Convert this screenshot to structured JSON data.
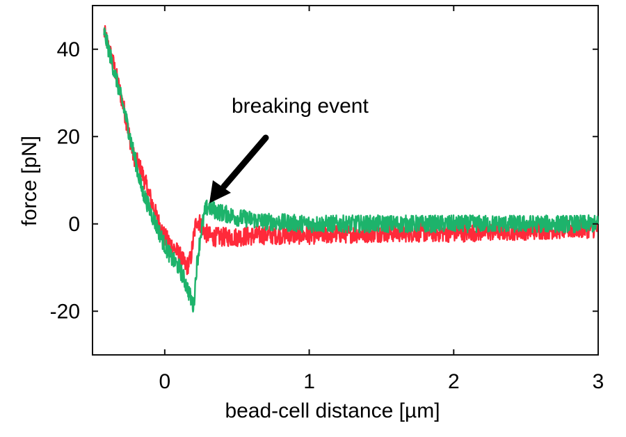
{
  "chart_data": {
    "type": "line",
    "xlabel": "bead-cell distance [µm]",
    "ylabel": "force [pN]",
    "xlim": [
      -0.5,
      3.0
    ],
    "ylim": [
      -30,
      50
    ],
    "x_ticks": [
      0,
      1,
      2,
      3
    ],
    "y_ticks": [
      -20,
      0,
      20,
      40
    ],
    "x_tick_labels": [
      "0",
      "1",
      "2",
      "3"
    ],
    "y_tick_labels": [
      "-20",
      "0",
      "20",
      "40"
    ],
    "grid": false,
    "legend": "none",
    "annotation": {
      "text": "breaking event",
      "arrow_target": [
        0.32,
        5
      ]
    },
    "series": [
      {
        "color": "#ff2a3a",
        "noise": 2.2,
        "x": [
          -0.42,
          -0.35,
          -0.28,
          -0.22,
          -0.16,
          -0.1,
          -0.05,
          0.0,
          0.05,
          0.1,
          0.15,
          0.18,
          0.2,
          0.22,
          0.25,
          0.28,
          0.32,
          0.4,
          0.5,
          0.7,
          1.0,
          1.5,
          2.0,
          2.5,
          3.0
        ],
        "y": [
          44,
          36,
          26,
          16,
          12,
          6,
          1,
          -3,
          -5,
          -7,
          -10,
          -8,
          -3,
          1,
          0,
          -2,
          -3,
          -3,
          -3,
          -2.5,
          -2.5,
          -2,
          -2,
          -1.5,
          -1
        ]
      },
      {
        "color": "#1db36b",
        "noise": 2.0,
        "x": [
          -0.42,
          -0.35,
          -0.28,
          -0.22,
          -0.16,
          -0.1,
          -0.05,
          0.0,
          0.05,
          0.1,
          0.15,
          0.2,
          0.22,
          0.25,
          0.28,
          0.3,
          0.35,
          0.4,
          0.5,
          0.7,
          1.0,
          1.5,
          2.0,
          2.5,
          3.0
        ],
        "y": [
          44,
          35,
          26,
          17,
          8,
          3,
          -1,
          -5,
          -8,
          -10,
          -14,
          -19,
          -10,
          -2,
          3,
          4,
          3,
          2.5,
          1.5,
          0.5,
          0,
          0,
          0,
          0,
          0
        ]
      }
    ]
  }
}
